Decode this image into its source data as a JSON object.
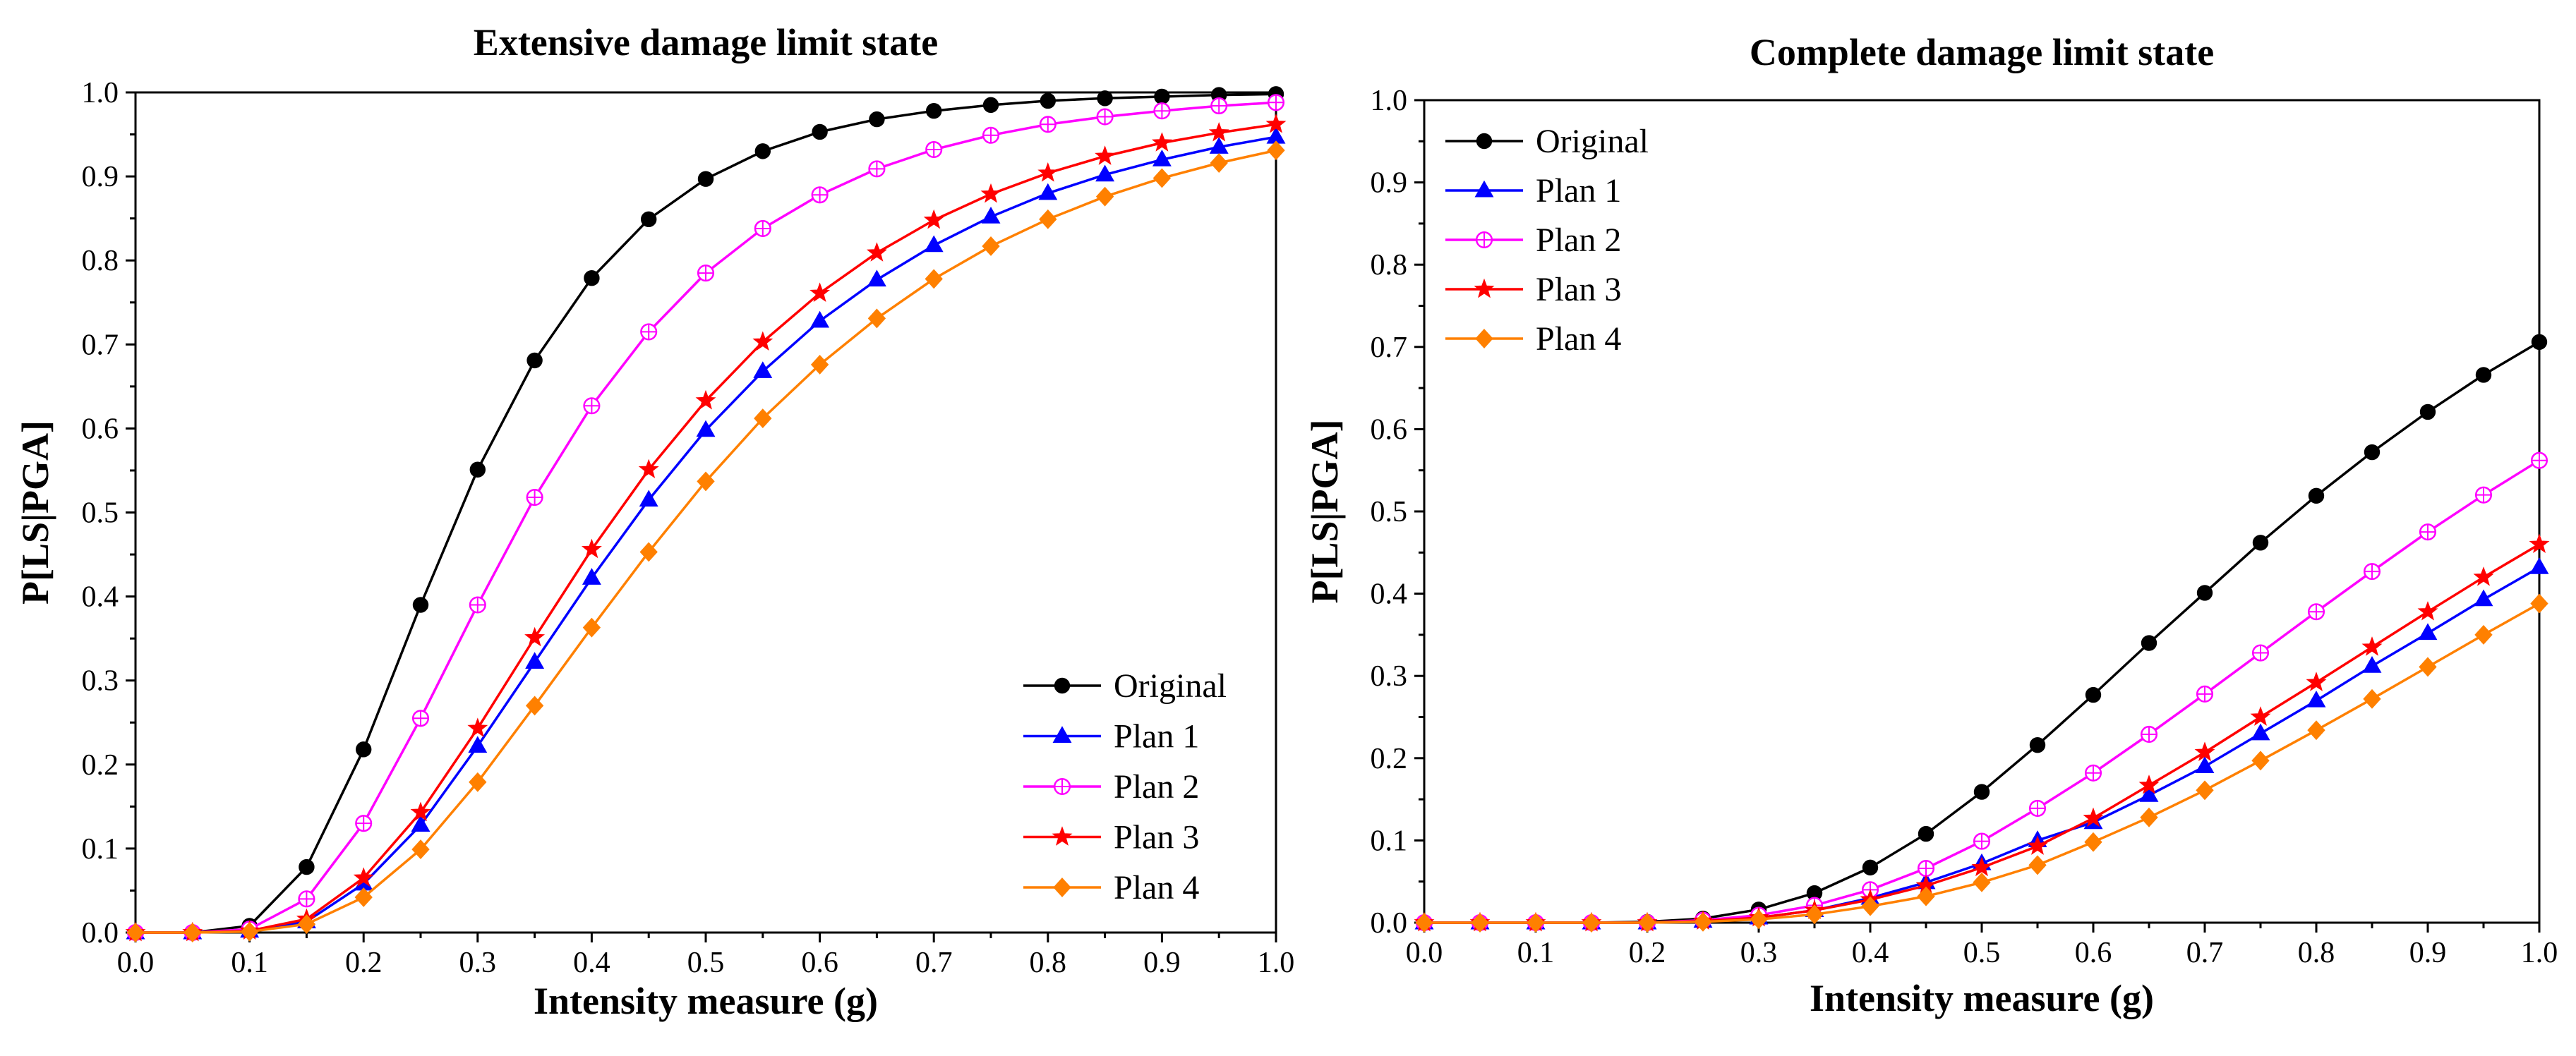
{
  "chart_data": [
    {
      "type": "line",
      "title": "Extensive damage limit state",
      "xlabel": "Intensity measure (g)",
      "ylabel": "P[LS|PGA]",
      "xlim": [
        0,
        1
      ],
      "ylim": [
        0,
        1
      ],
      "xticks": [
        "0.0",
        "0.1",
        "0.2",
        "0.3",
        "0.4",
        "0.5",
        "0.6",
        "0.7",
        "0.8",
        "0.9",
        "1.0"
      ],
      "yticks": [
        "0.0",
        "0.1",
        "0.2",
        "0.3",
        "0.4",
        "0.5",
        "0.6",
        "0.7",
        "0.8",
        "0.9",
        "1.0"
      ],
      "legend_position": "bottom-right",
      "x": [
        0,
        0.05,
        0.1,
        0.15,
        0.2,
        0.25,
        0.3,
        0.35,
        0.4,
        0.45,
        0.5,
        0.55,
        0.6,
        0.65,
        0.7,
        0.75,
        0.8,
        0.85,
        0.9,
        0.95,
        1.0
      ],
      "series": [
        {
          "name": "Original",
          "color": "#000000",
          "marker": "circle",
          "values": [
            0,
            0,
            0.008,
            0.078,
            0.218,
            0.39,
            0.551,
            0.681,
            0.779,
            0.849,
            0.897,
            0.93,
            0.953,
            0.968,
            0.978,
            0.985,
            0.99,
            0.993,
            0.995,
            0.997,
            0.998
          ]
        },
        {
          "name": "Plan 1",
          "color": "#0000ff",
          "marker": "triangle",
          "values": [
            0,
            0,
            0.002,
            0.013,
            0.058,
            0.128,
            0.222,
            0.322,
            0.422,
            0.515,
            0.598,
            0.668,
            0.728,
            0.777,
            0.818,
            0.852,
            0.88,
            0.902,
            0.92,
            0.935,
            0.947
          ]
        },
        {
          "name": "Plan 2",
          "color": "#ff00ff",
          "marker": "circle-plus",
          "values": [
            0,
            0,
            0.004,
            0.04,
            0.13,
            0.255,
            0.39,
            0.518,
            0.627,
            0.715,
            0.785,
            0.838,
            0.878,
            0.909,
            0.932,
            0.949,
            0.962,
            0.971,
            0.978,
            0.984,
            0.988
          ]
        },
        {
          "name": "Plan 3",
          "color": "#ff0000",
          "marker": "star",
          "values": [
            0,
            0,
            0.002,
            0.016,
            0.065,
            0.143,
            0.243,
            0.351,
            0.456,
            0.551,
            0.633,
            0.703,
            0.761,
            0.809,
            0.848,
            0.879,
            0.904,
            0.924,
            0.94,
            0.952,
            0.962
          ]
        },
        {
          "name": "Plan 4",
          "color": "#ff8000",
          "marker": "diamond",
          "values": [
            0,
            0,
            0.001,
            0.01,
            0.042,
            0.099,
            0.179,
            0.27,
            0.363,
            0.453,
            0.537,
            0.612,
            0.676,
            0.731,
            0.778,
            0.817,
            0.849,
            0.876,
            0.898,
            0.916,
            0.931
          ]
        }
      ]
    },
    {
      "type": "line",
      "title": "Complete damage limit state",
      "xlabel": "Intensity measure (g)",
      "ylabel": "P[LS|PGA]",
      "xlim": [
        0,
        1
      ],
      "ylim": [
        0,
        1
      ],
      "xticks": [
        "0.0",
        "0.1",
        "0.2",
        "0.3",
        "0.4",
        "0.5",
        "0.6",
        "0.7",
        "0.8",
        "0.9",
        "1.0"
      ],
      "yticks": [
        "0.0",
        "0.1",
        "0.2",
        "0.3",
        "0.4",
        "0.5",
        "0.6",
        "0.7",
        "0.8",
        "0.9",
        "1.0"
      ],
      "legend_position": "top-left",
      "x": [
        0,
        0.05,
        0.1,
        0.15,
        0.2,
        0.25,
        0.3,
        0.35,
        0.4,
        0.45,
        0.5,
        0.55,
        0.6,
        0.65,
        0.7,
        0.75,
        0.8,
        0.85,
        0.9,
        0.95,
        1.0
      ],
      "series": [
        {
          "name": "Original",
          "color": "#000000",
          "marker": "circle",
          "values": [
            0,
            0,
            0,
            0,
            0.001,
            0.005,
            0.016,
            0.036,
            0.067,
            0.108,
            0.159,
            0.216,
            0.277,
            0.34,
            0.401,
            0.462,
            0.519,
            0.572,
            0.621,
            0.666,
            0.706
          ]
        },
        {
          "name": "Plan 1",
          "color": "#0000ff",
          "marker": "triangle",
          "values": [
            0,
            0,
            0,
            0,
            0,
            0.002,
            0.006,
            0.015,
            0.03,
            0.049,
            0.072,
            0.1,
            0.122,
            0.155,
            0.19,
            0.23,
            0.27,
            0.312,
            0.352,
            0.393,
            0.432
          ]
        },
        {
          "name": "Plan 2",
          "color": "#ff00ff",
          "marker": "circle-plus",
          "values": [
            0,
            0,
            0,
            0,
            0,
            0.003,
            0.009,
            0.021,
            0.04,
            0.066,
            0.099,
            0.139,
            0.182,
            0.229,
            0.278,
            0.328,
            0.378,
            0.427,
            0.475,
            0.52,
            0.562
          ]
        },
        {
          "name": "Plan 3",
          "color": "#ff0000",
          "marker": "star",
          "values": [
            0,
            0,
            0,
            0,
            0,
            0.002,
            0.006,
            0.015,
            0.028,
            0.045,
            0.067,
            0.093,
            0.127,
            0.167,
            0.207,
            0.25,
            0.292,
            0.335,
            0.378,
            0.42,
            0.46
          ]
        },
        {
          "name": "Plan 4",
          "color": "#ff8000",
          "marker": "diamond",
          "values": [
            0,
            0,
            0,
            0,
            0,
            0.001,
            0.004,
            0.01,
            0.02,
            0.032,
            0.049,
            0.07,
            0.098,
            0.128,
            0.161,
            0.197,
            0.234,
            0.272,
            0.311,
            0.35,
            0.388
          ]
        }
      ]
    }
  ]
}
